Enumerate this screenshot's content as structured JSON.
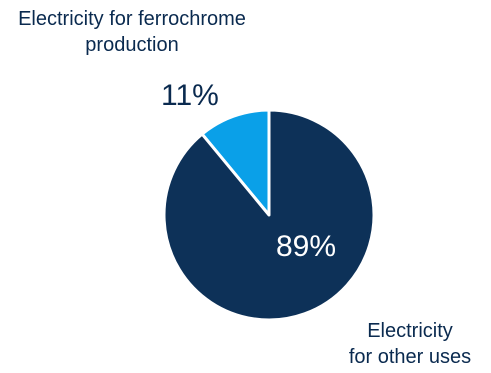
{
  "chart_data": {
    "type": "pie",
    "slices": [
      {
        "name_lines": [
          "Electricity for ferrochrome",
          "production"
        ],
        "value": 11,
        "value_label": "11%",
        "color": "#0aa0e8"
      },
      {
        "name_lines": [
          "Electricity",
          "for other uses"
        ],
        "value": 89,
        "value_label": "89%",
        "color": "#0d3158"
      }
    ],
    "separator_color": "#ffffff"
  }
}
